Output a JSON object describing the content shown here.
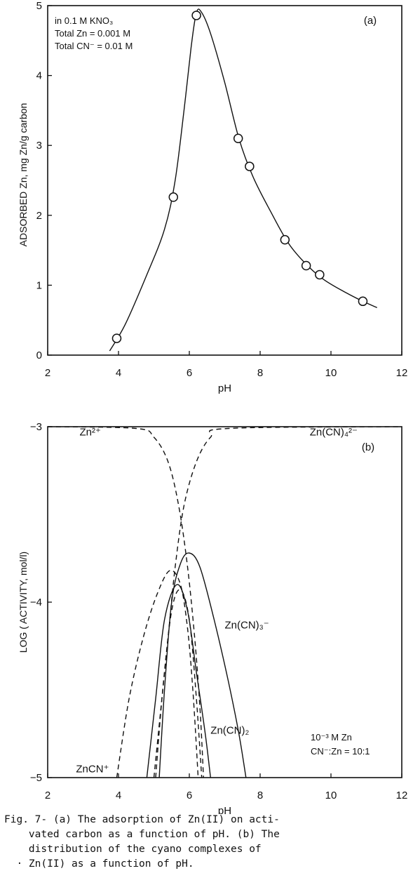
{
  "chart_data": [
    {
      "id": "a",
      "type": "scatter",
      "panel_label": "(a)",
      "xlabel": "pH",
      "ylabel": "ADSORBED Zn, mg Zn/g carbon",
      "xlim": [
        2,
        12
      ],
      "ylim": [
        0,
        5
      ],
      "xticks": [
        2,
        4,
        6,
        8,
        10,
        12
      ],
      "yticks": [
        0,
        1,
        2,
        3,
        4,
        5
      ],
      "annotations": [
        "in 0.1 M KNO₃",
        "Total Zn = 0.001 M",
        "Total CN⁻ = 0.01 M"
      ],
      "points": [
        {
          "x": 3.95,
          "y": 0.24
        },
        {
          "x": 5.55,
          "y": 2.26
        },
        {
          "x": 6.2,
          "y": 4.86
        },
        {
          "x": 7.38,
          "y": 3.1
        },
        {
          "x": 7.7,
          "y": 2.7
        },
        {
          "x": 8.7,
          "y": 1.65
        },
        {
          "x": 9.3,
          "y": 1.28
        },
        {
          "x": 9.68,
          "y": 1.15
        },
        {
          "x": 10.9,
          "y": 0.77
        }
      ],
      "fit_curve": [
        [
          3.75,
          0.06
        ],
        [
          4.2,
          0.45
        ],
        [
          4.8,
          1.15
        ],
        [
          5.3,
          1.8
        ],
        [
          5.6,
          2.5
        ],
        [
          5.85,
          3.5
        ],
        [
          6.05,
          4.4
        ],
        [
          6.2,
          4.9
        ],
        [
          6.35,
          4.9
        ],
        [
          6.6,
          4.6
        ],
        [
          7.0,
          3.9
        ],
        [
          7.4,
          3.1
        ],
        [
          7.8,
          2.55
        ],
        [
          8.3,
          2.05
        ],
        [
          8.8,
          1.6
        ],
        [
          9.3,
          1.3
        ],
        [
          9.8,
          1.08
        ],
        [
          10.4,
          0.9
        ],
        [
          10.9,
          0.77
        ],
        [
          11.3,
          0.68
        ]
      ]
    },
    {
      "id": "b",
      "type": "line",
      "panel_label": "(b)",
      "xlabel": "pH",
      "ylabel": "LOG ( ACTIVITY, mol/l)",
      "xlim": [
        2,
        12
      ],
      "ylim": [
        -5,
        -3
      ],
      "xticks": [
        2,
        4,
        6,
        8,
        10,
        12
      ],
      "yticks": [
        -5,
        -4,
        -3
      ],
      "annotations": [
        "10⁻³ M Zn",
        "CN⁻:Zn = 10:1"
      ],
      "series": [
        {
          "name": "Zn²⁺",
          "style": "dashed",
          "label_at": [
            2.9,
            -3.05
          ],
          "points": [
            [
              2,
              -3
            ],
            [
              4.5,
              -3.01
            ],
            [
              5.0,
              -3.06
            ],
            [
              5.4,
              -3.2
            ],
            [
              5.7,
              -3.45
            ],
            [
              5.95,
              -3.8
            ],
            [
              6.15,
              -4.2
            ],
            [
              6.3,
              -4.6
            ],
            [
              6.4,
              -5
            ]
          ]
        },
        {
          "name": "Zn(CN)₄²⁻",
          "style": "dashed",
          "label_at": [
            9.4,
            -3.05
          ],
          "points": [
            [
              5.0,
              -5
            ],
            [
              5.2,
              -4.6
            ],
            [
              5.4,
              -4.2
            ],
            [
              5.6,
              -3.8
            ],
            [
              5.85,
              -3.45
            ],
            [
              6.2,
              -3.2
            ],
            [
              6.6,
              -3.06
            ],
            [
              7.1,
              -3.01
            ],
            [
              12,
              -3
            ]
          ]
        },
        {
          "name": "ZnCN⁺",
          "style": "dashed",
          "label_at": [
            2.8,
            -4.97
          ],
          "points": [
            [
              3.95,
              -5
            ],
            [
              4.3,
              -4.55
            ],
            [
              4.7,
              -4.2
            ],
            [
              5.1,
              -3.95
            ],
            [
              5.45,
              -3.82
            ],
            [
              5.75,
              -3.9
            ],
            [
              5.95,
              -4.15
            ],
            [
              6.1,
              -4.5
            ],
            [
              6.25,
              -5
            ]
          ]
        },
        {
          "name": "Zn(CN)₂",
          "style": "solid",
          "label_at": [
            6.6,
            -4.75
          ],
          "points": [
            [
              4.8,
              -5
            ],
            [
              5.05,
              -4.55
            ],
            [
              5.3,
              -4.1
            ],
            [
              5.65,
              -3.9
            ],
            [
              5.95,
              -4.05
            ],
            [
              6.2,
              -4.4
            ],
            [
              6.45,
              -4.75
            ],
            [
              6.6,
              -5
            ]
          ]
        },
        {
          "name": "Zn(CN)₃⁻",
          "style": "solid",
          "label_at": [
            7.0,
            -4.15
          ],
          "points": [
            [
              5.15,
              -5
            ],
            [
              5.3,
              -4.5
            ],
            [
              5.5,
              -4.0
            ],
            [
              5.75,
              -3.78
            ],
            [
              6.0,
              -3.72
            ],
            [
              6.3,
              -3.8
            ],
            [
              6.7,
              -4.1
            ],
            [
              7.1,
              -4.45
            ],
            [
              7.4,
              -4.75
            ],
            [
              7.6,
              -5
            ]
          ]
        },
        {
          "name": "",
          "style": "dashed",
          "label_at": null,
          "points": [
            [
              5.05,
              -5
            ],
            [
              5.25,
              -4.5
            ],
            [
              5.5,
              -4.05
            ],
            [
              5.75,
              -3.93
            ],
            [
              6.0,
              -4.1
            ],
            [
              6.2,
              -4.55
            ],
            [
              6.35,
              -5
            ]
          ]
        }
      ]
    }
  ],
  "caption": {
    "lines": [
      "Fig. 7- (a) The adsorption of Zn(II) on acti-",
      "    vated carbon as a function of pH. (b) The",
      "    distribution of the cyano complexes of",
      "  · Zn(II) as a function of pH."
    ]
  }
}
